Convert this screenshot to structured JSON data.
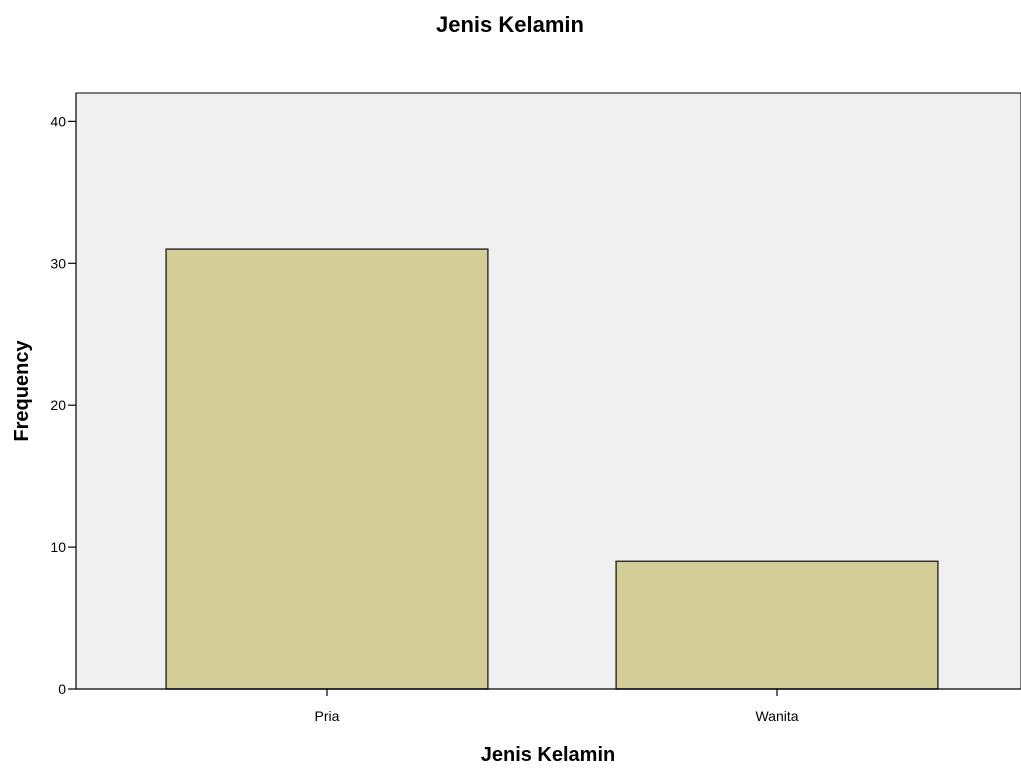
{
  "chart_data": {
    "type": "bar",
    "title": "Jenis Kelamin",
    "xlabel": "Jenis Kelamin",
    "ylabel": "Frequency",
    "categories": [
      "Pria",
      "Wanita"
    ],
    "values": [
      31,
      9
    ],
    "ylim": [
      0,
      42
    ],
    "yticks": [
      0,
      10,
      20,
      30,
      40
    ],
    "grid": false,
    "colors": {
      "bar_fill": "#d3cd98",
      "bar_stroke": "#333333",
      "plot_background": "#f0f0f0",
      "axis": "#000000"
    }
  }
}
